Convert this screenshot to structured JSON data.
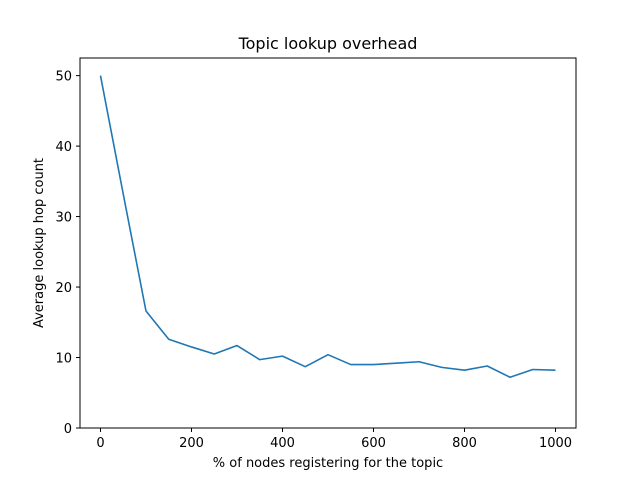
{
  "chart_data": {
    "type": "line",
    "title": "Topic lookup overhead",
    "xlabel": "% of nodes registering for the topic",
    "ylabel": "Average lookup hop count",
    "xlim": [
      -45,
      1045
    ],
    "ylim": [
      0,
      52.5
    ],
    "xticks": [
      0,
      200,
      400,
      600,
      800,
      1000
    ],
    "yticks": [
      0,
      10,
      20,
      30,
      40,
      50
    ],
    "grid": false,
    "series": [
      {
        "color": "#1f77b4",
        "x": [
          0,
          50,
          100,
          150,
          200,
          250,
          300,
          350,
          400,
          450,
          500,
          550,
          600,
          650,
          700,
          750,
          800,
          850,
          900,
          950,
          1000
        ],
        "y": [
          50.0,
          33.2,
          16.6,
          12.6,
          11.5,
          10.5,
          11.7,
          9.7,
          10.2,
          8.7,
          10.4,
          9.0,
          9.0,
          9.2,
          9.4,
          8.6,
          8.2,
          8.8,
          7.2,
          8.3,
          8.2
        ]
      }
    ]
  }
}
